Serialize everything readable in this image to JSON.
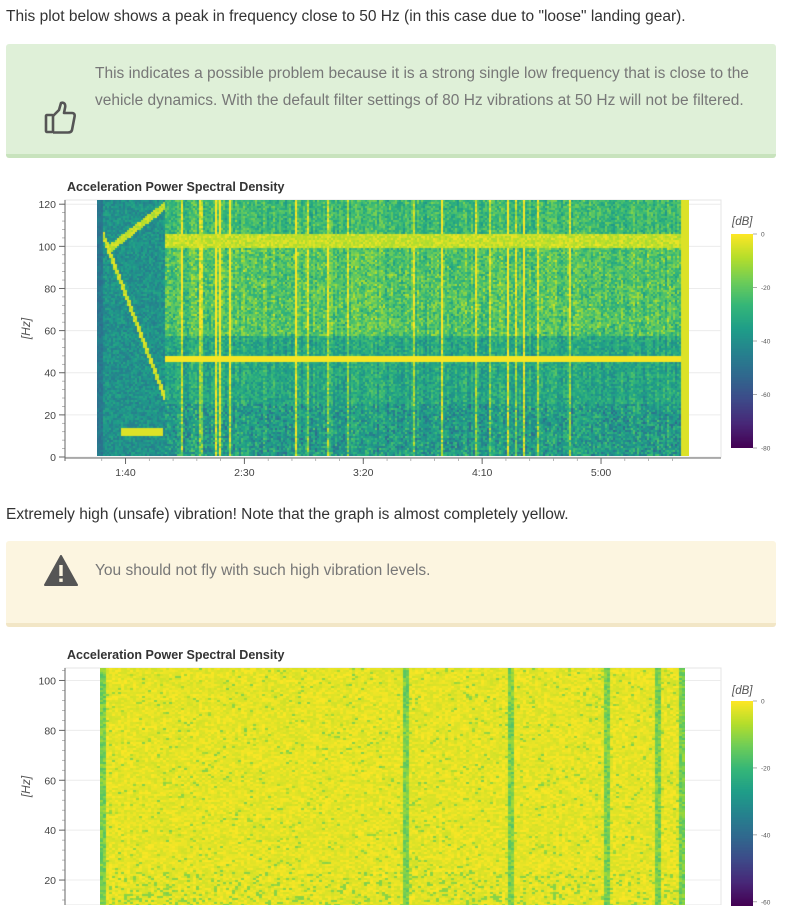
{
  "intro_text": "This plot below shows a peak in frequency close to 50 Hz (in this case due to \"loose\" landing gear).",
  "tip_callout": {
    "icon": "thumbs-up-icon",
    "text": "This indicates a possible problem because it is a strong single low frequency that is close to the vehicle dynamics. With the default filter settings of 80 Hz vibrations at 50 Hz will not be filtered."
  },
  "middle_text": "Extremely high (unsafe) vibration! Note that the graph is almost completely yellow.",
  "warning_callout": {
    "icon": "warning-triangle-icon",
    "text": "You should not fly with such high vibration levels."
  },
  "colors": {
    "tip_bg": "#dff0d8",
    "warn_bg": "#fcf5e0",
    "viridis_low": "#440154",
    "viridis_high": "#fde725"
  },
  "chart_data": [
    {
      "type": "heatmap",
      "title": "Acceleration Power Spectral Density",
      "ylabel": "[Hz]",
      "xlabel": "",
      "y_ticks": [
        0,
        20,
        40,
        60,
        80,
        100,
        120
      ],
      "x_ticks": [
        "1:40",
        "2:30",
        "3:20",
        "4:10",
        "5:00"
      ],
      "x_tick_seconds": [
        100,
        150,
        200,
        250,
        300
      ],
      "x_range_seconds": [
        88,
        337
      ],
      "ylim": [
        0,
        122
      ],
      "colorbar": {
        "title": "[dB]",
        "ticks": [
          0,
          -20,
          -40,
          -60,
          -80
        ],
        "range": [
          -80,
          0
        ],
        "colorscale": "viridis"
      },
      "features": {
        "peak_frequency_hz": 47,
        "low_band_hz": 12,
        "upper_band_hz": 103
      }
    },
    {
      "type": "heatmap",
      "title": "Acceleration Power Spectral Density",
      "ylabel": "[Hz]",
      "xlabel": "",
      "y_ticks": [
        20,
        40,
        60,
        80,
        100
      ],
      "ylim": [
        10,
        105
      ],
      "colorbar": {
        "title": "[dB]",
        "ticks": [
          0,
          -20,
          -40,
          -60
        ],
        "range": [
          -70,
          0
        ],
        "colorscale": "viridis"
      },
      "features": {
        "dominant_level_db": 0
      }
    }
  ]
}
